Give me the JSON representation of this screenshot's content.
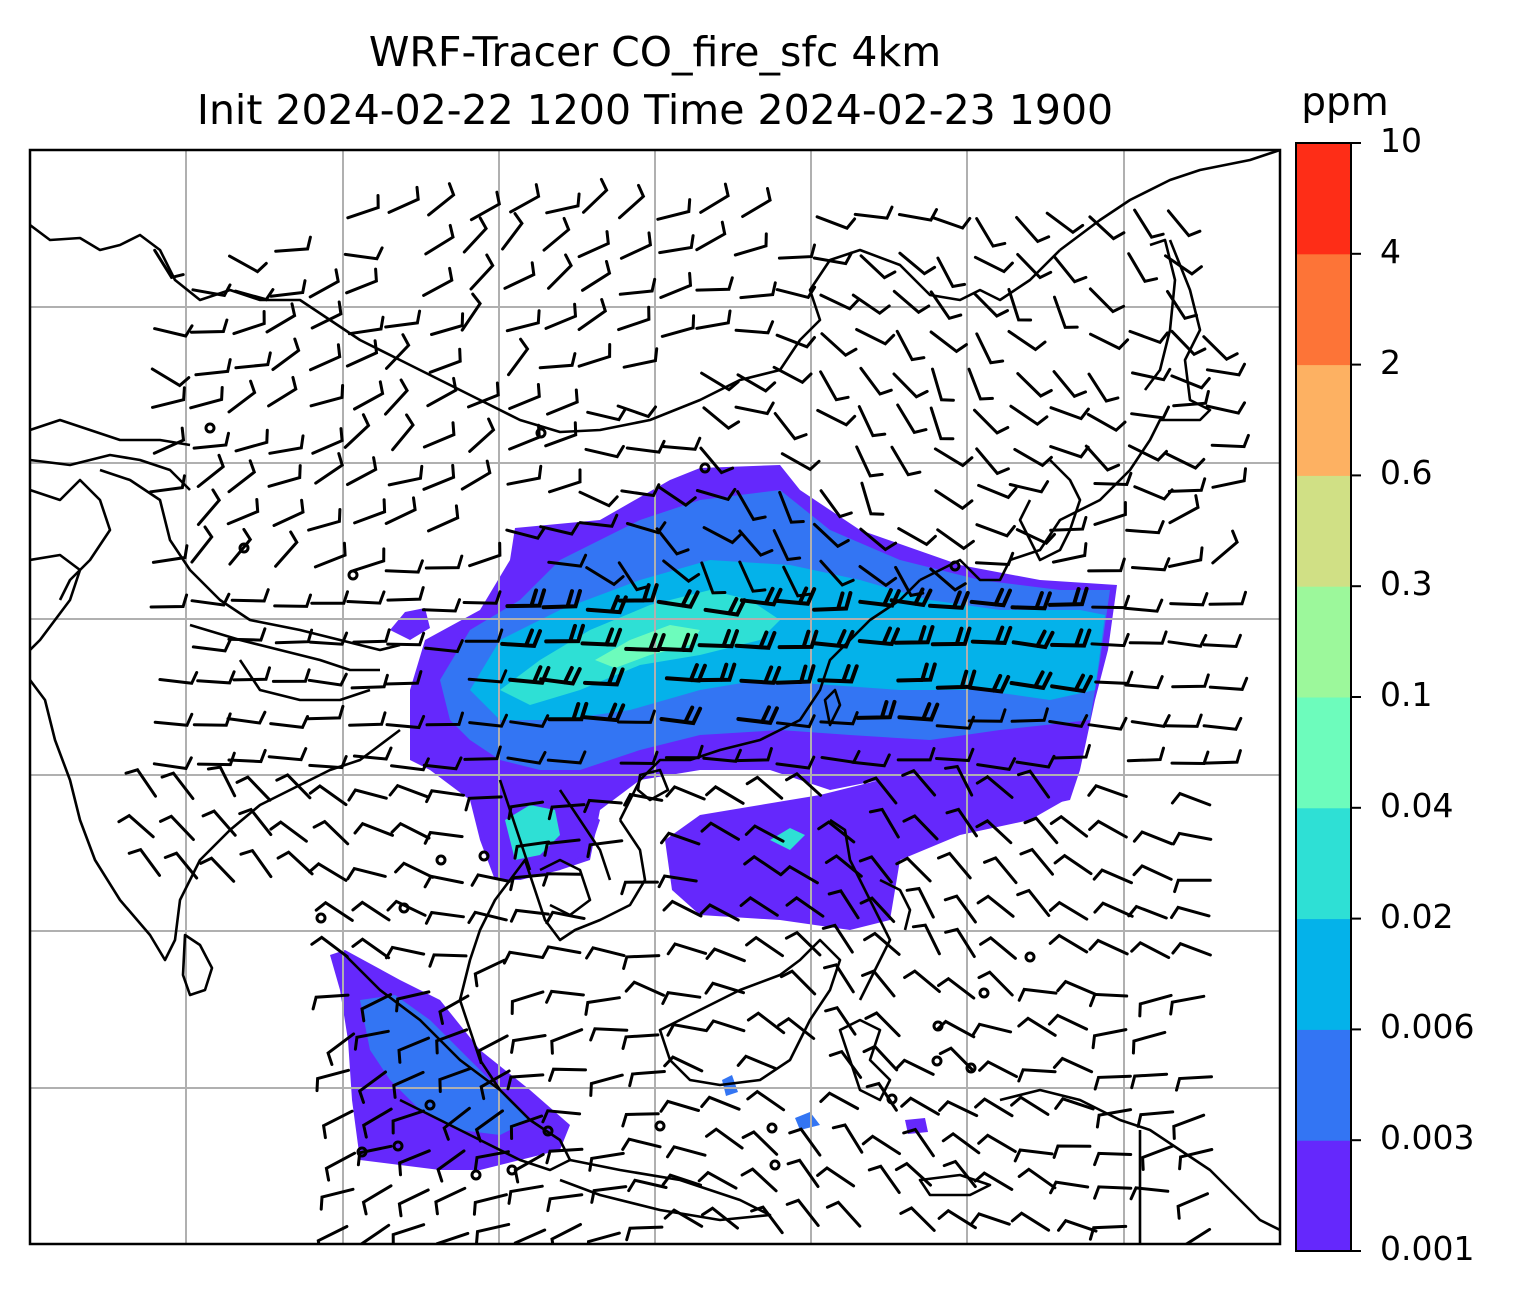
{
  "title": {
    "line1": "WRF-Tracer CO_fire_sfc 4km",
    "line2": "Init 2024-02-22 1200 Time 2024-02-23 1900"
  },
  "colorbar": {
    "unit": "ppm",
    "levels": [
      "0.001",
      "0.003",
      "0.006",
      "0.02",
      "0.04",
      "0.1",
      "0.3",
      "0.6",
      "2",
      "4",
      "10"
    ],
    "colors": [
      "#6528fc",
      "#3375f3",
      "#04b2ea",
      "#2ee0d5",
      "#6dfcbc",
      "#9cf89b",
      "#d0e085",
      "#fdb162",
      "#fd7437",
      "#fe2d17"
    ]
  },
  "map": {
    "grid": "on",
    "coastline_color": "#000000",
    "grid_color": "#b0b0b0"
  }
}
